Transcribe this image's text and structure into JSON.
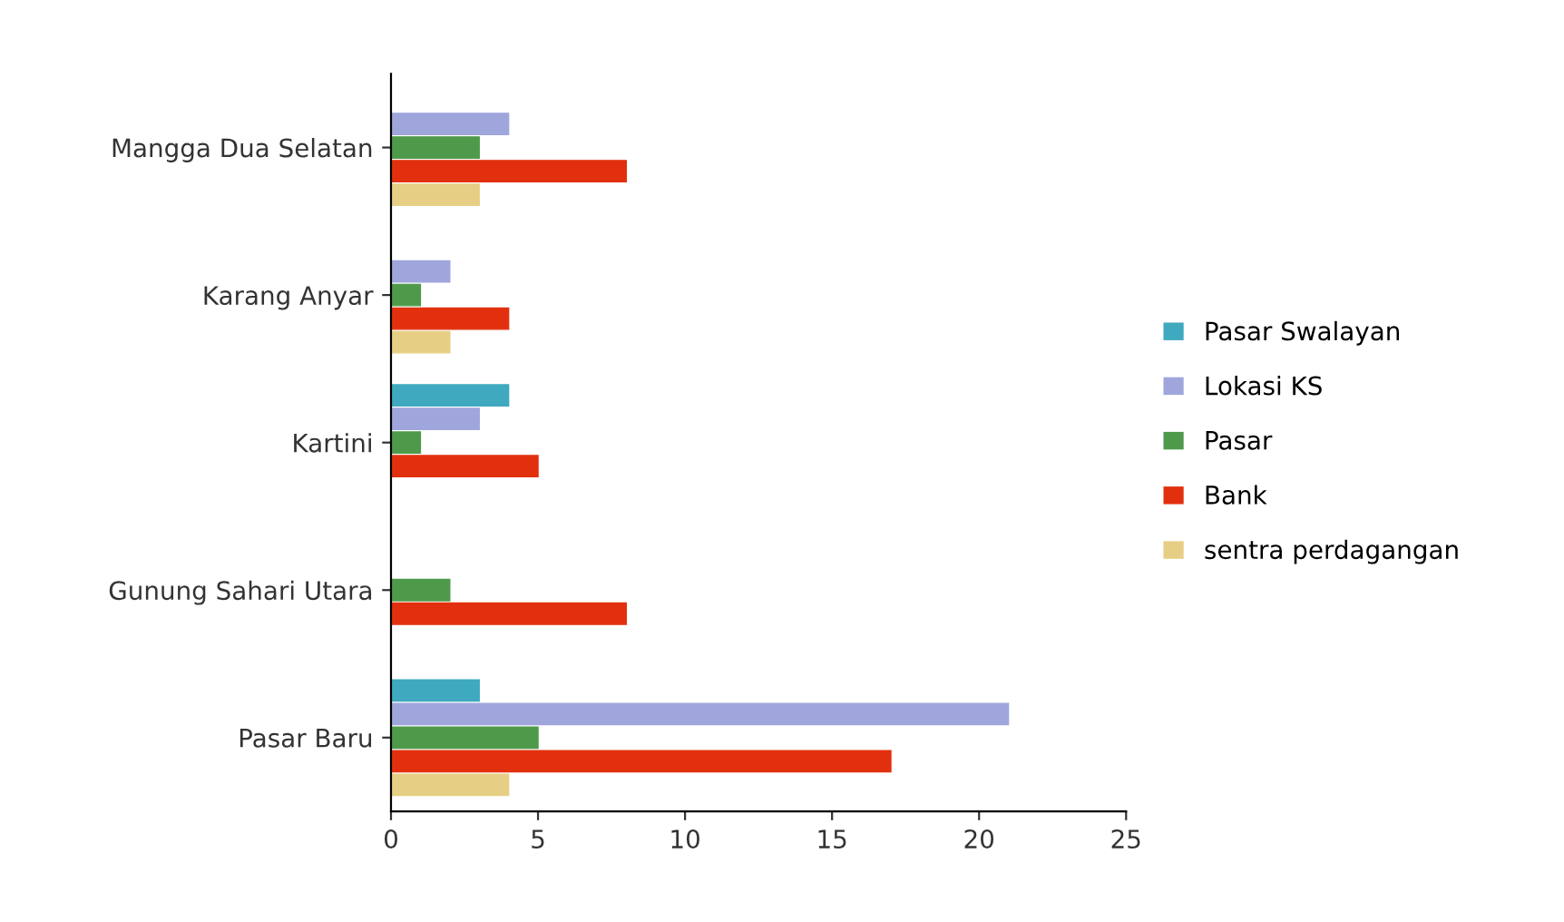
{
  "chart_data": {
    "type": "bar",
    "orientation": "horizontal",
    "categories": [
      "Mangga Dua Selatan",
      "Karang Anyar",
      "Kartini",
      "Gunung Sahari Utara",
      "Pasar Baru"
    ],
    "series": [
      {
        "name": "Pasar Swalayan",
        "color": "#3fa9bf",
        "values": [
          0,
          0,
          4,
          0,
          3
        ]
      },
      {
        "name": "Lokasi KS",
        "color": "#9fa6dc",
        "values": [
          4,
          2,
          3,
          0,
          21
        ]
      },
      {
        "name": "Pasar",
        "color": "#4e9a4a",
        "values": [
          3,
          1,
          1,
          2,
          5
        ]
      },
      {
        "name": "Bank",
        "color": "#e2300e",
        "values": [
          8,
          4,
          5,
          8,
          17
        ]
      },
      {
        "name": "sentra perdagangan",
        "color": "#e6cf85",
        "values": [
          3,
          2,
          0,
          0,
          4
        ]
      }
    ],
    "xlim": [
      0,
      25
    ],
    "xticks": [
      0,
      5,
      10,
      15,
      20,
      25
    ],
    "grid": false,
    "legend": "right"
  }
}
